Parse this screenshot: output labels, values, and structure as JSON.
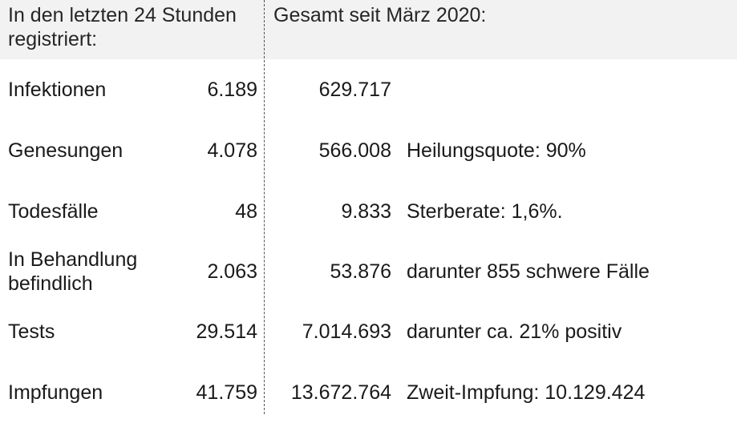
{
  "header": {
    "daily_title": "In den letzten 24 Stunden registriert:",
    "total_title": "Gesamt seit März 2020:"
  },
  "rows": [
    {
      "label": "Infektionen",
      "daily": "6.189",
      "total": "629.717",
      "note": ""
    },
    {
      "label": "Genesungen",
      "daily": "4.078",
      "total": "566.008",
      "note": "Heilungsquote: 90%"
    },
    {
      "label": "Todesfälle",
      "daily": "48",
      "total": "9.833",
      "note": "Sterberate: 1,6%."
    },
    {
      "label": "In Behandlung befindlich",
      "daily": "2.063",
      "total": "53.876",
      "note": "darunter 855 schwere Fälle"
    },
    {
      "label": "Tests",
      "daily": "29.514",
      "total": "7.014.693",
      "note": "darunter ca. 21% positiv"
    },
    {
      "label": "Impfungen",
      "daily": "41.759",
      "total": "13.672.764",
      "note": "Zweit-Impfung: 10.129.424"
    }
  ]
}
